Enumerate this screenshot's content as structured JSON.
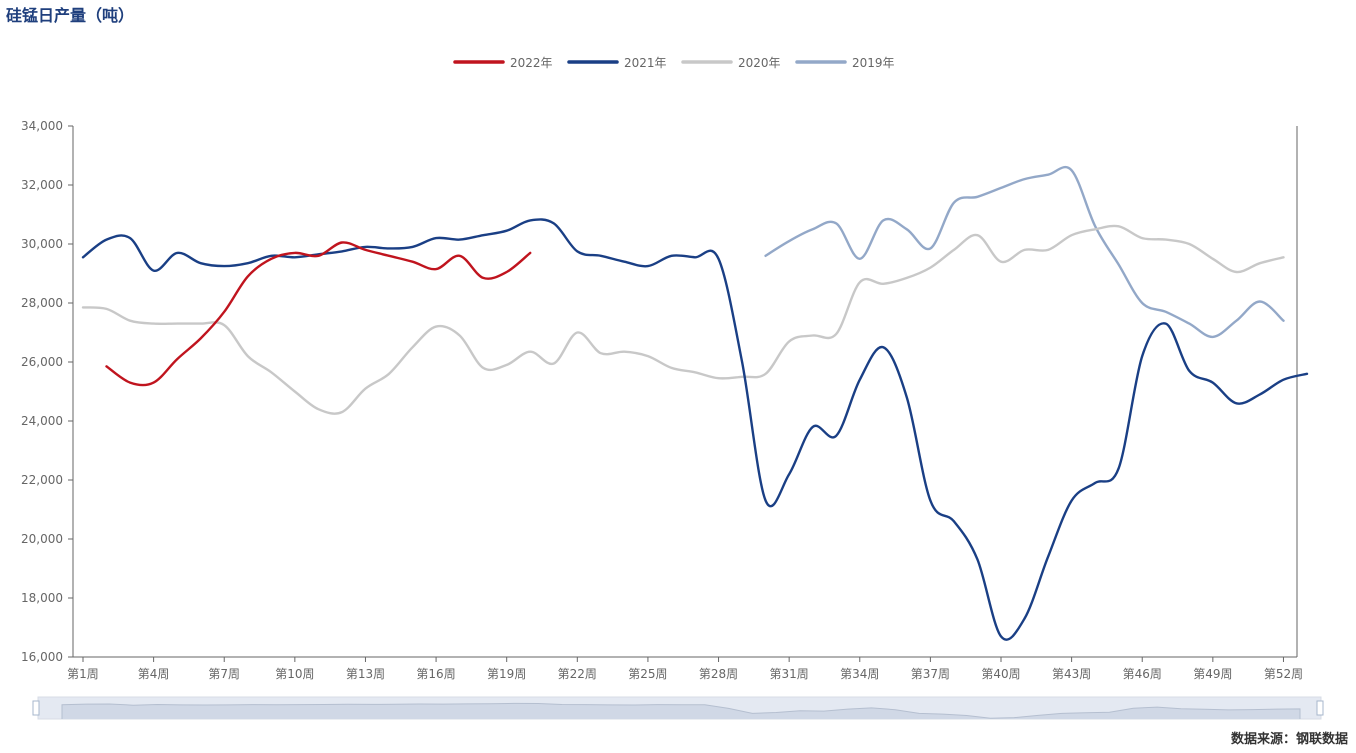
{
  "chart_data": {
    "type": "line",
    "title": "硅锰日产量（吨）",
    "source": "数据来源：钢联数据",
    "x_categories": [
      "第1周",
      "第4周",
      "第7周",
      "第10周",
      "第13周",
      "第16周",
      "第19周",
      "第22周",
      "第25周",
      "第28周",
      "第31周",
      "第34周",
      "第37周",
      "第40周",
      "第43周",
      "第46周",
      "第49周",
      "第52周"
    ],
    "x_min_week": 1,
    "x_max_week": 53,
    "ylim": [
      16000,
      34000
    ],
    "yticks": [
      16000,
      18000,
      20000,
      22000,
      24000,
      26000,
      28000,
      30000,
      32000,
      34000
    ],
    "ytick_labels": [
      "16,000",
      "18,000",
      "20,000",
      "22,000",
      "24,000",
      "26,000",
      "28,000",
      "30,000",
      "32,000",
      "34,000"
    ],
    "legend_position": "top-center",
    "series": [
      {
        "name": "2022年",
        "color": "#c0141e",
        "x": [
          2,
          3,
          4,
          5,
          6,
          7,
          8,
          9,
          10,
          11,
          12,
          13,
          14,
          15,
          16,
          17,
          18,
          19,
          20
        ],
        "values": [
          25850,
          25300,
          25300,
          26100,
          26800,
          27700,
          28900,
          29500,
          29700,
          29600,
          30050,
          29800,
          29600,
          29400,
          29150,
          29600,
          28850,
          29050,
          29700
        ]
      },
      {
        "name": "2021年",
        "color": "#1a3f85",
        "x": [
          1,
          2,
          3,
          4,
          5,
          6,
          7,
          8,
          9,
          10,
          11,
          12,
          13,
          14,
          15,
          16,
          17,
          18,
          19,
          20,
          21,
          22,
          23,
          24,
          25,
          26,
          27,
          28,
          29,
          30,
          31,
          32,
          33,
          34,
          35,
          36,
          37,
          38,
          39,
          40,
          41,
          42,
          43,
          44,
          45,
          46,
          47,
          48,
          49,
          50,
          51,
          52,
          53
        ],
        "values": [
          29550,
          30150,
          30200,
          29100,
          29700,
          29350,
          29250,
          29350,
          29600,
          29550,
          29650,
          29750,
          29900,
          29850,
          29900,
          30200,
          30150,
          30300,
          30450,
          30800,
          30700,
          29750,
          29600,
          29400,
          29250,
          29600,
          29550,
          29500,
          26000,
          21300,
          22200,
          23800,
          23500,
          25400,
          26500,
          24800,
          21300,
          20600,
          19300,
          16700,
          17300,
          19400,
          21300,
          21900,
          22400,
          26200,
          27300,
          25700,
          25300,
          24600,
          24900,
          25400,
          25600
        ]
      },
      {
        "name": "2020年",
        "color": "#c8c8c8",
        "x": [
          1,
          2,
          3,
          4,
          5,
          6,
          7,
          8,
          9,
          10,
          11,
          12,
          13,
          14,
          15,
          16,
          17,
          18,
          19,
          20,
          21,
          22,
          23,
          24,
          25,
          26,
          27,
          28,
          29,
          30,
          31,
          32,
          33,
          34,
          35,
          36,
          37,
          38,
          39,
          40,
          41,
          42,
          43,
          44,
          45,
          46,
          47,
          48,
          49,
          50,
          51,
          52
        ],
        "values": [
          27850,
          27800,
          27400,
          27300,
          27300,
          27300,
          27250,
          26200,
          25650,
          25000,
          24400,
          24300,
          25100,
          25600,
          26500,
          27200,
          26900,
          25800,
          25900,
          26350,
          25950,
          27000,
          26300,
          26350,
          26200,
          25800,
          25650,
          25450,
          25500,
          25600,
          26700,
          26900,
          26950,
          28700,
          28650,
          28850,
          29200,
          29800,
          30300,
          29400,
          29800,
          29800,
          30300,
          30500,
          30600,
          30200,
          30150,
          30000,
          29500,
          29050,
          29350,
          29550
        ]
      },
      {
        "name": "2019年",
        "color": "#93a8c8",
        "x": [
          30,
          31,
          32,
          33,
          34,
          35,
          36,
          37,
          38,
          39,
          40,
          41,
          42,
          43,
          44,
          45,
          46,
          47,
          48,
          49,
          50,
          51,
          52
        ],
        "values": [
          29600,
          30100,
          30500,
          30700,
          29500,
          30800,
          30500,
          29850,
          31400,
          31600,
          31900,
          32200,
          32350,
          32500,
          30600,
          29300,
          28000,
          27700,
          27300,
          26850,
          27400,
          28050,
          27400
        ]
      }
    ]
  }
}
